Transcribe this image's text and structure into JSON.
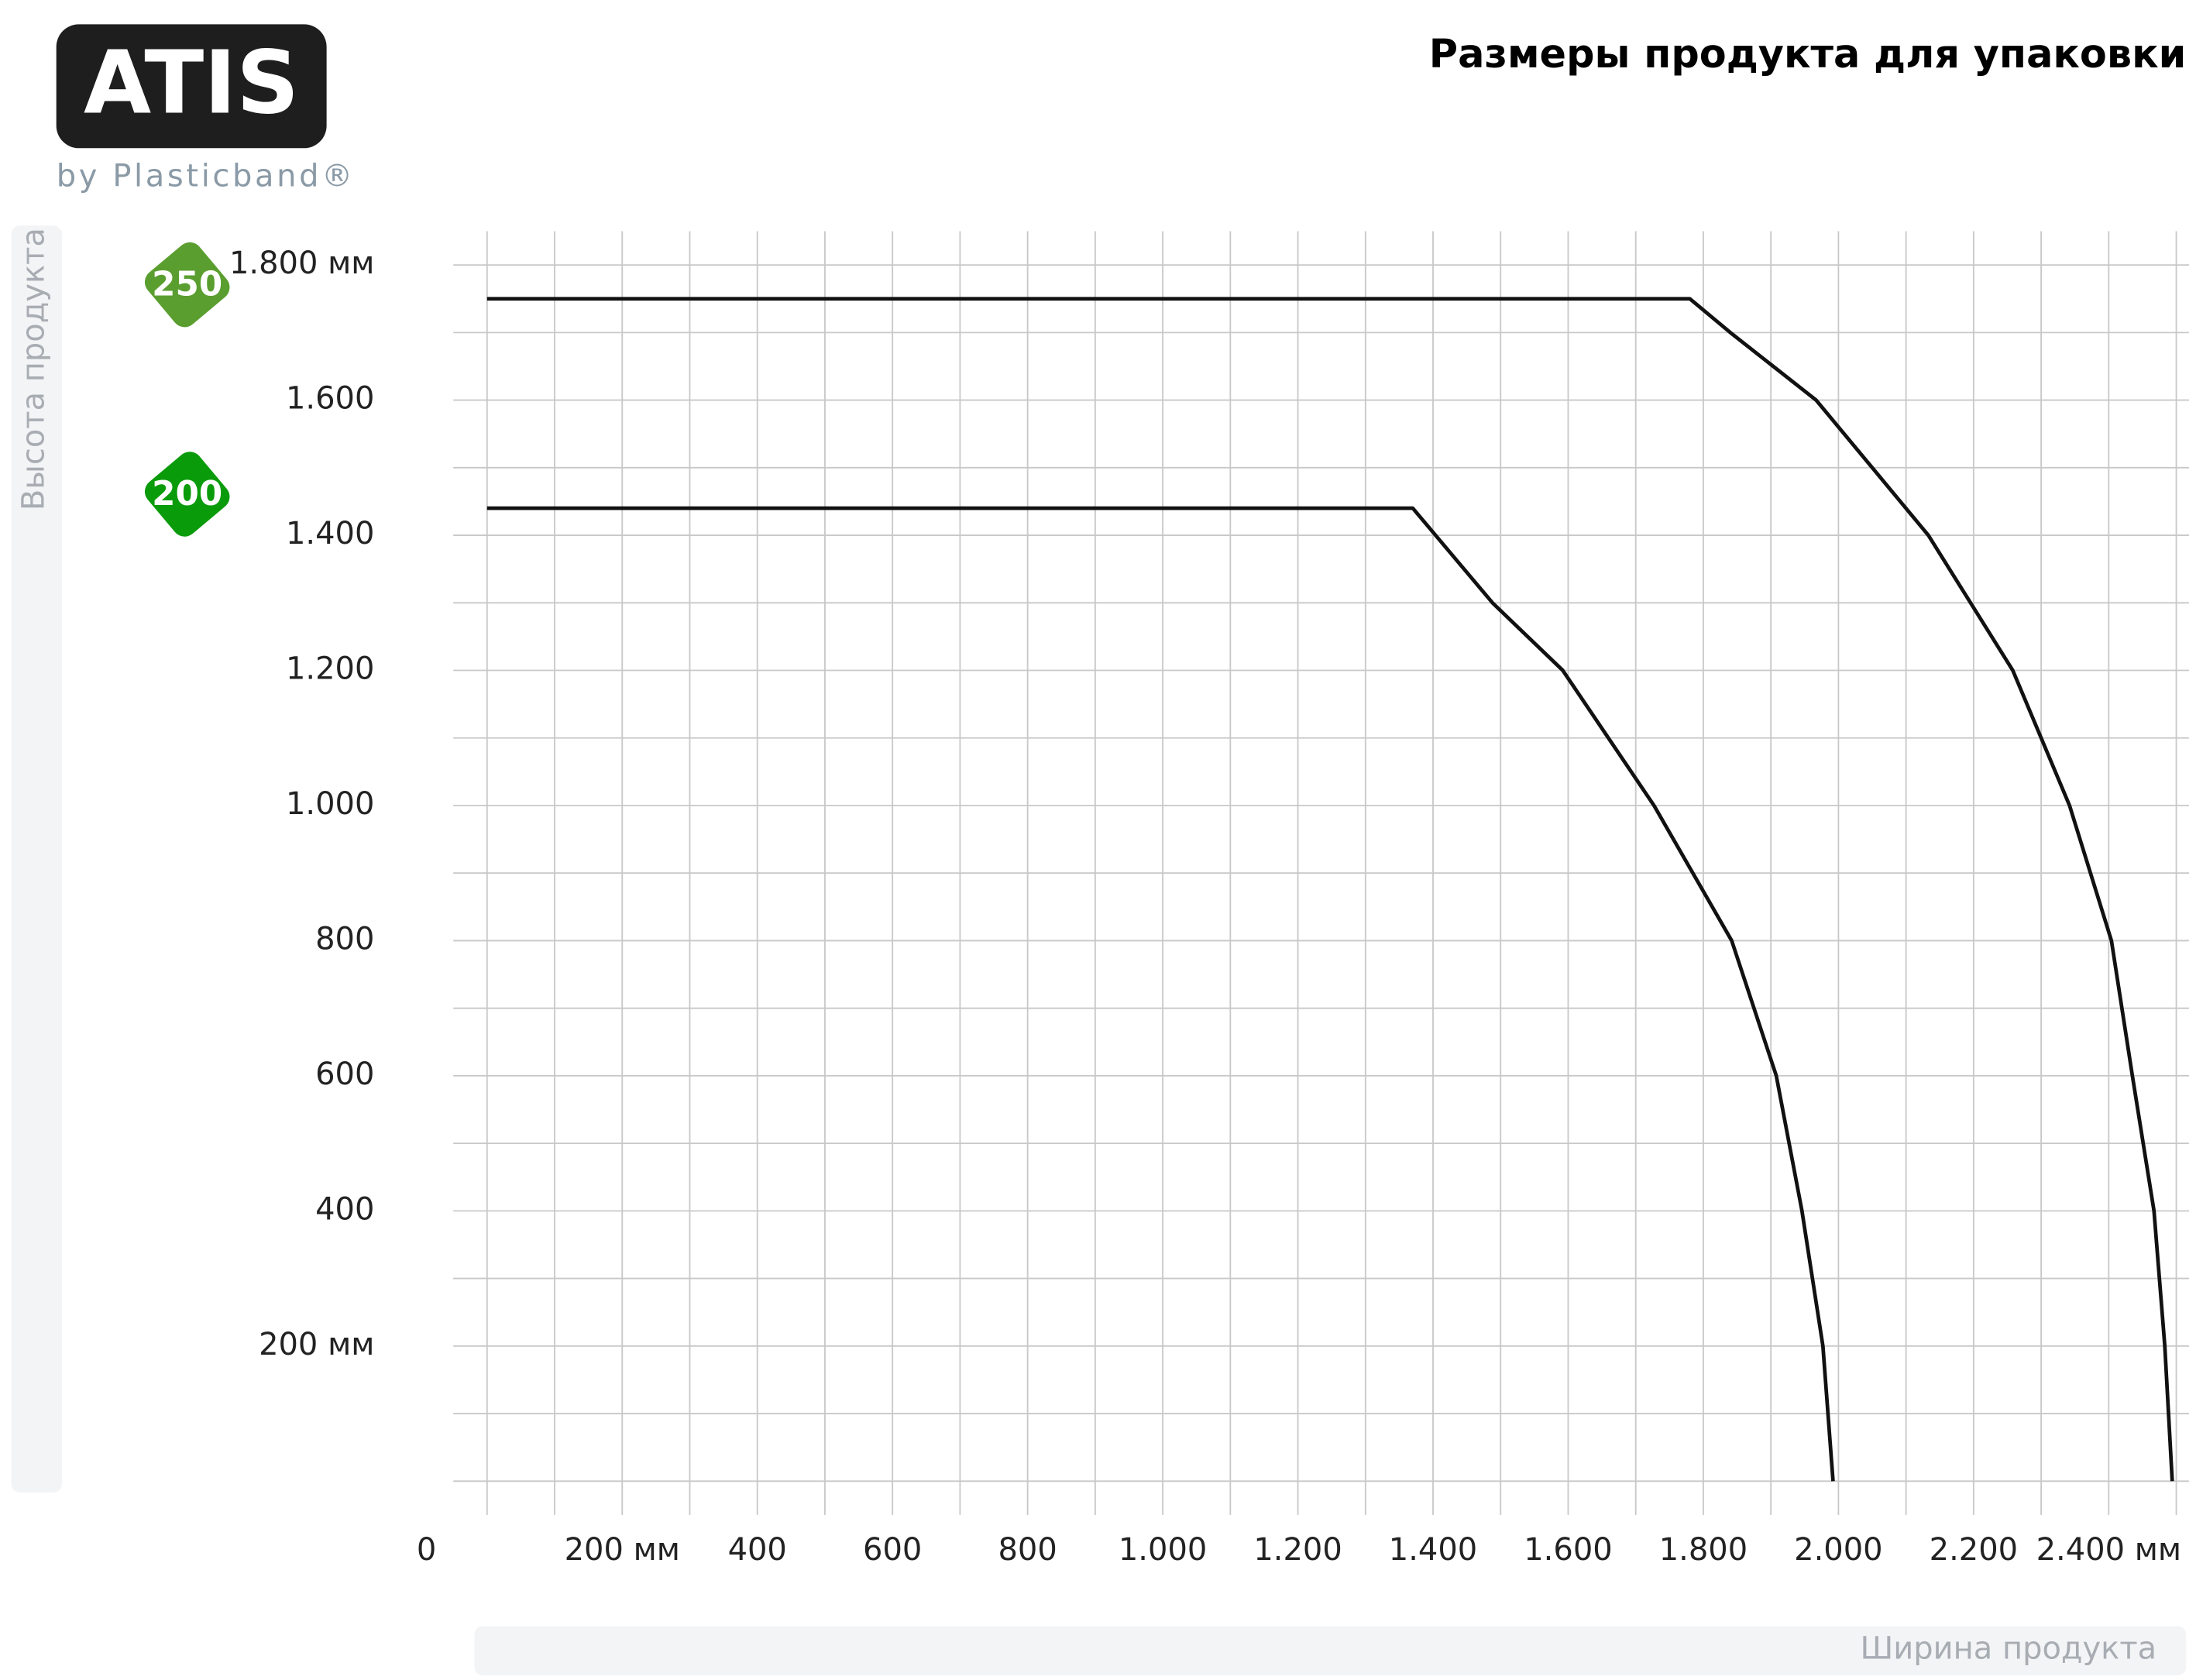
{
  "logo": {
    "brand": "ATIS",
    "tagline": "by Plasticband®"
  },
  "chart_data": {
    "type": "line",
    "title": "Размеры продукта для упаковки",
    "y_label": "Высота продукта",
    "x_label": "Ширина продукта",
    "xlim": [
      0,
      2500
    ],
    "ylim": [
      0,
      1850
    ],
    "xticks": [
      0,
      {
        "value": 200,
        "label": "200 мм"
      },
      400,
      600,
      800,
      {
        "value": 1000,
        "label": "1.000"
      },
      {
        "value": 1200,
        "label": "1.200"
      },
      {
        "value": 1400,
        "label": "1.400"
      },
      {
        "value": 1600,
        "label": "1.600"
      },
      {
        "value": 1800,
        "label": "1.800"
      },
      {
        "value": 2000,
        "label": "2.000"
      },
      {
        "value": 2200,
        "label": "2.200"
      },
      {
        "value": 2400,
        "label": "2.400 мм"
      }
    ],
    "yticks": [
      {
        "value": 200,
        "label": "200 мм"
      },
      400,
      600,
      800,
      {
        "value": 1000,
        "label": "1.000"
      },
      {
        "value": 1200,
        "label": "1.200"
      },
      {
        "value": 1400,
        "label": "1.400"
      },
      {
        "value": 1600,
        "label": "1.600"
      },
      {
        "value": 1800,
        "label": "1.800 мм"
      }
    ],
    "xminor": [
      100,
      300,
      500,
      700,
      900,
      1100,
      1300,
      1500,
      1700,
      1900,
      2100,
      2300,
      2500
    ],
    "yminor": [
      0,
      100,
      300,
      500,
      700,
      900,
      1100,
      1300,
      1500,
      1700
    ],
    "grid": true,
    "series": [
      {
        "name": "250",
        "color": "#111111",
        "badge_color": "#5a9e2f",
        "x": [
          0,
          1780,
          1840,
          1967,
          2133,
          2258,
          2342,
          2404,
          2435,
          2467,
          2483,
          2494
        ],
        "y": [
          1750,
          1750,
          1700,
          1600,
          1400,
          1200,
          1000,
          800,
          600,
          400,
          200,
          0
        ]
      },
      {
        "name": "200",
        "color": "#111111",
        "badge_color": "#0a9b0a",
        "x": [
          0,
          1370,
          1488,
          1592,
          1727,
          1842,
          1908,
          1946,
          1977,
          1992
        ],
        "y": [
          1440,
          1440,
          1300,
          1200,
          1000,
          800,
          600,
          400,
          200,
          0
        ]
      }
    ]
  }
}
